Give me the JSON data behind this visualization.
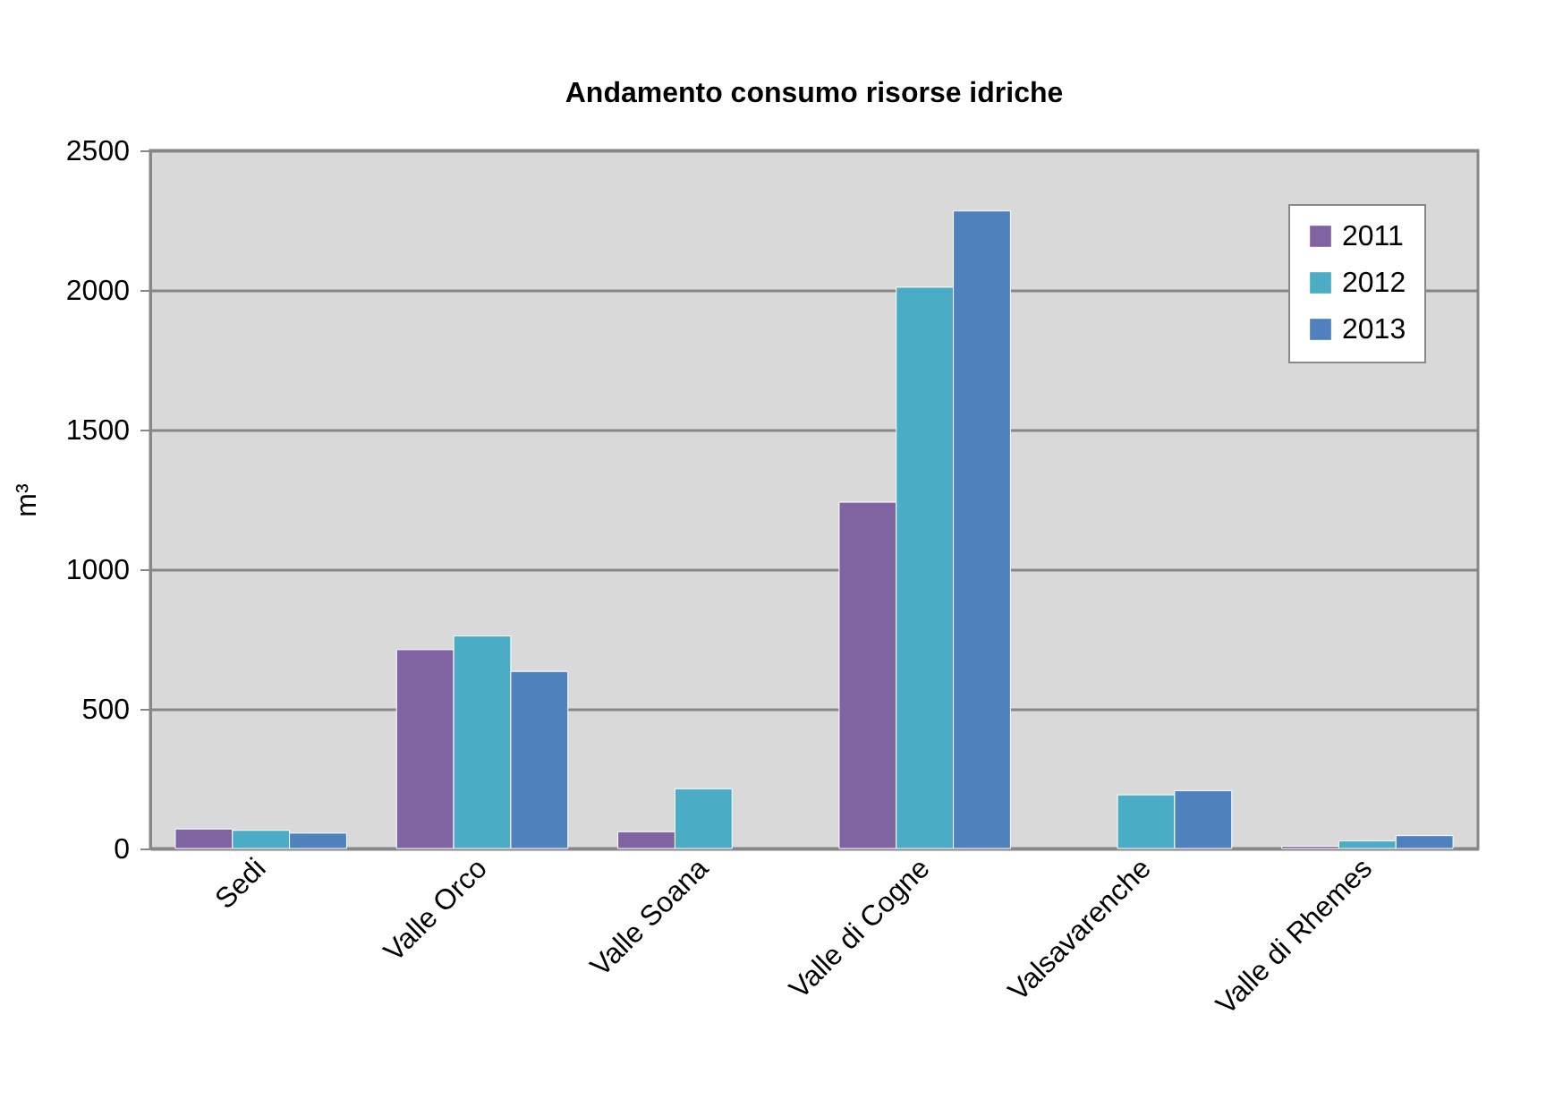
{
  "chart_data": {
    "type": "bar",
    "title": "Andamento consumo risorse idriche",
    "ylabel": "m³",
    "categories": [
      "Sedi",
      "Valle Orco",
      "Valle Soana",
      "Valle di Cogne",
      "Valsavarenche",
      "Valle di Rhemes"
    ],
    "series": [
      {
        "name": "2011",
        "color": "#8064a2",
        "values": [
          70,
          712,
          60,
          1240,
          null,
          8
        ]
      },
      {
        "name": "2012",
        "color": "#4bacc6",
        "values": [
          65,
          761,
          214,
          2010,
          192,
          27
        ]
      },
      {
        "name": "2013",
        "color": "#4f81bd",
        "values": [
          55,
          634,
          null,
          2283,
          207,
          46
        ]
      }
    ],
    "ylim": [
      0,
      2500
    ],
    "yticks": [
      0,
      500,
      1000,
      1500,
      2000,
      2500
    ],
    "grid": "y",
    "legend": "top right"
  }
}
